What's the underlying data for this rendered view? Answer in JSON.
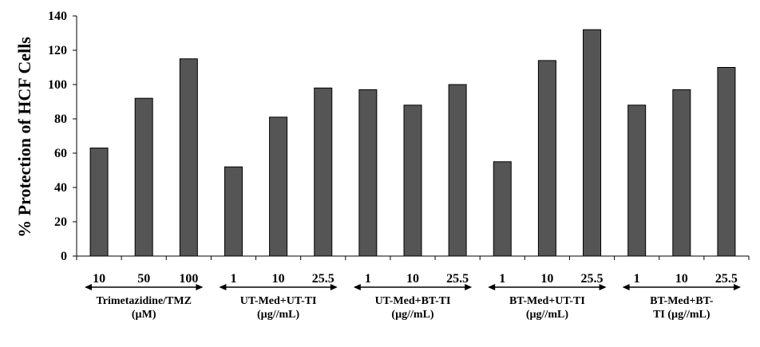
{
  "chart_data": {
    "type": "bar",
    "ylabel": "% Protection of HCF Cells",
    "ylim": [
      0,
      140
    ],
    "yticks": [
      "0",
      "20",
      "40",
      "60",
      "80",
      "100",
      "120",
      "140"
    ],
    "grid": false,
    "categories": [
      "10",
      "50",
      "100",
      "1",
      "10",
      "25.5",
      "1",
      "10",
      "25.5",
      "1",
      "10",
      "25.5",
      "1",
      "10",
      "25.5"
    ],
    "values": [
      63,
      92,
      115,
      52,
      81,
      98,
      97,
      88,
      100,
      55,
      114,
      132,
      88,
      97,
      110
    ],
    "bar_color": "#555555",
    "groups": [
      {
        "label_line1": "Trimetazidine/TMZ",
        "label_line2": "(µM)"
      },
      {
        "label_line1": "UT-Med+UT-TI",
        "label_line2": "(µg//mL)"
      },
      {
        "label_line1": "UT-Med+BT-TI",
        "label_line2": "(µg//mL)"
      },
      {
        "label_line1": "BT-Med+UT-TI",
        "label_line2": "(µg//mL)"
      },
      {
        "label_line1": "BT-Med+BT-",
        "label_line2": "TI (µg//mL)"
      }
    ]
  }
}
